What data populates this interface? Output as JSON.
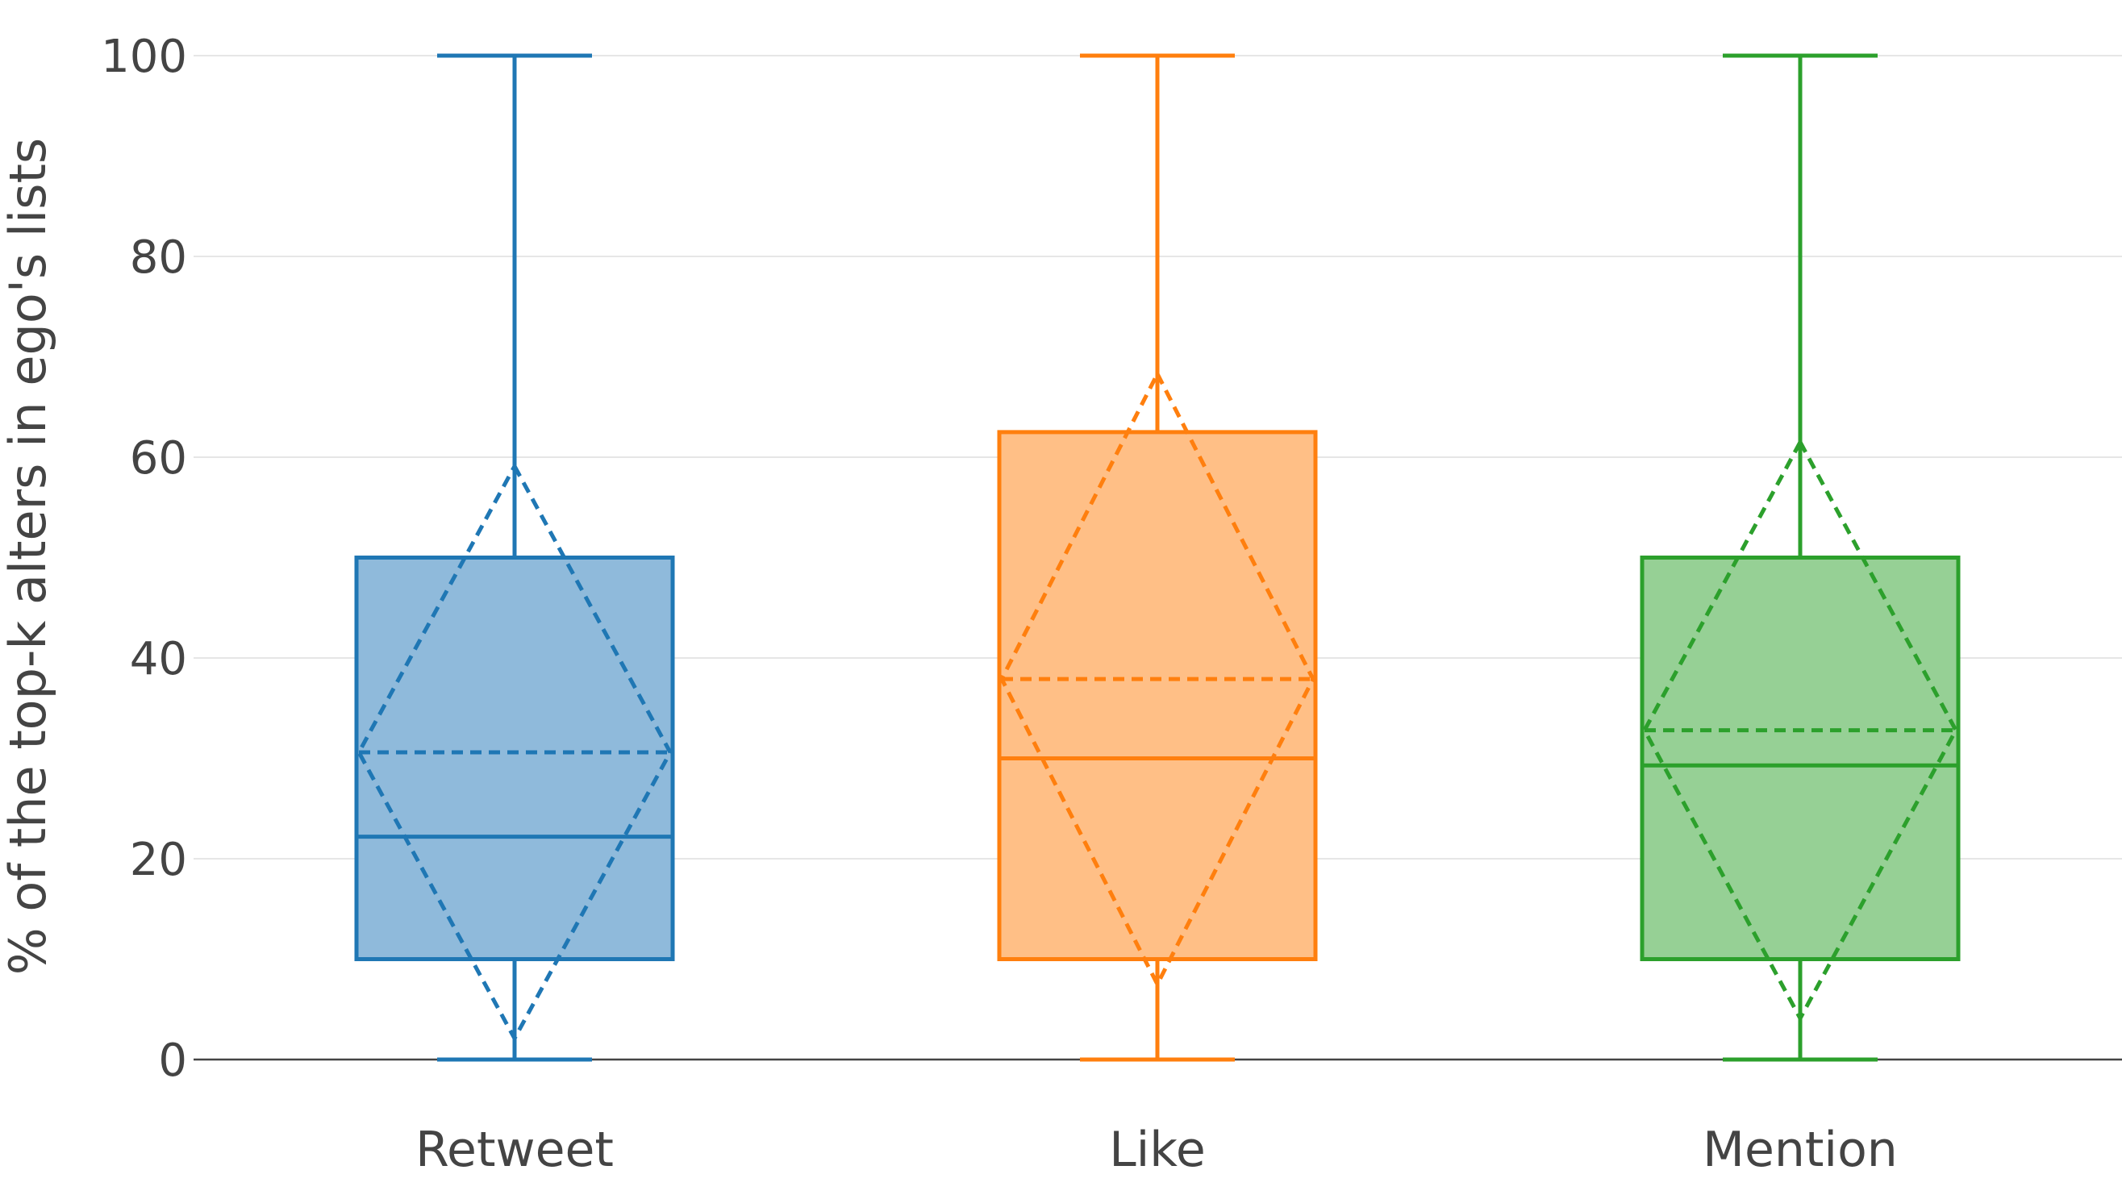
{
  "chart_data": {
    "type": "box",
    "ylabel": "% of the top-k alters in ego's lists",
    "xlabel": "",
    "ylim": [
      0,
      100
    ],
    "yticks": [
      0,
      20,
      40,
      60,
      80,
      100
    ],
    "grid": true,
    "categories": [
      "Retweet",
      "Like",
      "Mention"
    ],
    "series": [
      {
        "category": "Retweet",
        "color": "#1f77b4",
        "fill": "#8fbadb",
        "min": 0,
        "q1": 10,
        "median": 22.2,
        "q3": 50,
        "max": 100,
        "mean": 30.6,
        "sd": 28.5
      },
      {
        "category": "Like",
        "color": "#ff7f0e",
        "fill": "#ffbf86",
        "min": 0,
        "q1": 10,
        "median": 30,
        "q3": 62.5,
        "max": 100,
        "mean": 37.9,
        "sd": 30.4
      },
      {
        "category": "Mention",
        "color": "#2ca02c",
        "fill": "#96d095",
        "min": 0,
        "q1": 10,
        "median": 29.3,
        "q3": 50,
        "max": 100,
        "mean": 32.8,
        "sd": 28.7
      }
    ]
  }
}
